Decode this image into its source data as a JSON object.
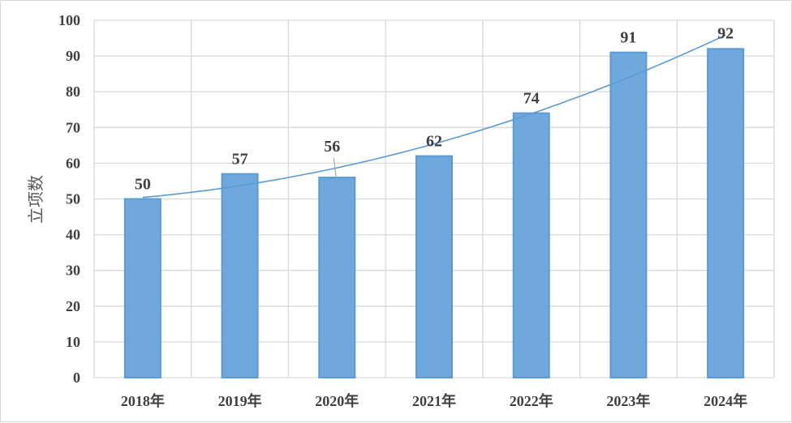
{
  "chart_data": {
    "type": "bar",
    "title": "",
    "xlabel": "",
    "ylabel": "立项数",
    "categories": [
      "2018年",
      "2019年",
      "2020年",
      "2021年",
      "2022年",
      "2023年",
      "2024年"
    ],
    "values": [
      50,
      57,
      56,
      62,
      74,
      91,
      92
    ],
    "data_labels": [
      "50",
      "57",
      "56",
      "62",
      "74",
      "91",
      "92"
    ],
    "ylim": [
      0,
      100
    ],
    "yticks": [
      "0",
      "10",
      "20",
      "30",
      "40",
      "50",
      "60",
      "70",
      "80",
      "90",
      "100"
    ],
    "grid": true,
    "legend": "none",
    "trendline": {
      "type": "polynomial",
      "order": 2
    },
    "colors": {
      "bar_fill": "#6fa8dc",
      "bar_border": "#5b9bd5",
      "trendline": "#5b9bd5",
      "grid": "#d9d9d9"
    }
  }
}
